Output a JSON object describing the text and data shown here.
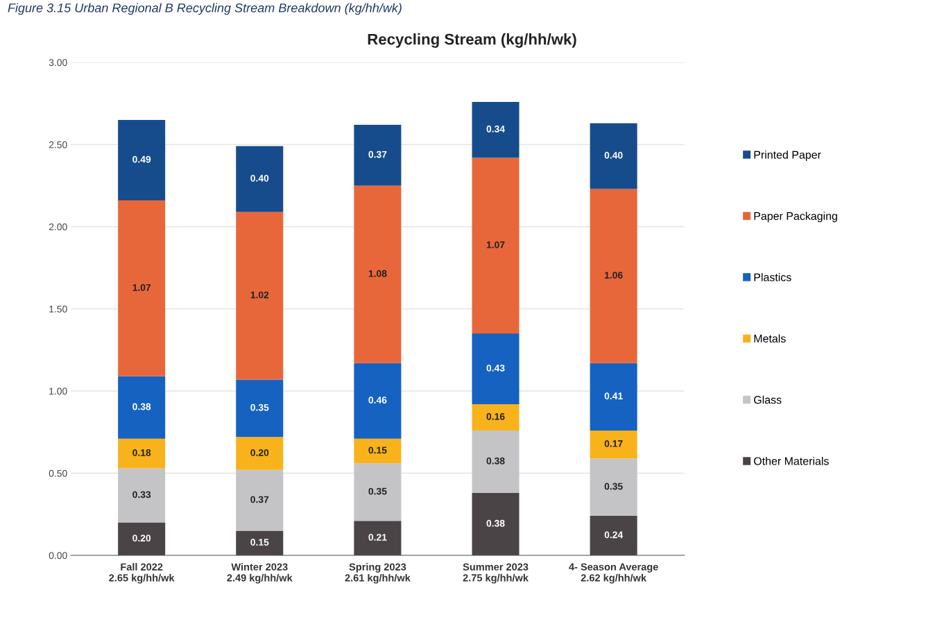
{
  "chart_data": {
    "type": "bar",
    "title": "Recycling Stream (kg/hh/wk)",
    "stacked": true,
    "grid": "y",
    "legend": "right",
    "annotations": [
      "Figure 3.15 Urban Regional B Recycling Stream Breakdown (kg/hh/wk)"
    ],
    "categories": [
      "Fall 2022\n2.65 kg/hh/wk",
      "Winter 2023\n2.49 kg/hh/wk",
      "Spring 2023\n2.61 kg/hh/wk",
      "Summer 2023\n2.75 kg/hh/wk",
      "4- Season Average\n2.62 kg/hh/wk"
    ],
    "ylim": [
      0,
      3.0
    ],
    "yticks": [
      {
        "value": 0,
        "label": "0.00"
      },
      {
        "value": 0.5,
        "label": "0.50"
      },
      {
        "value": 1.0,
        "label": "1.00"
      },
      {
        "value": 1.5,
        "label": "1.50"
      },
      {
        "value": 2.0,
        "label": "2.00"
      },
      {
        "value": 2.5,
        "label": "2.50"
      },
      {
        "value": 3.0,
        "label": "3.00"
      }
    ],
    "series": [
      {
        "name": "Other Materials",
        "color": "#4a4446",
        "values": [
          0.2,
          0.15,
          0.21,
          0.38,
          0.24
        ],
        "value_labels": [
          "0.20",
          "0.15",
          "0.21",
          "0.38",
          "0.24"
        ]
      },
      {
        "name": "Glass",
        "color": "#c4c4c6",
        "values": [
          0.33,
          0.37,
          0.35,
          0.38,
          0.35
        ],
        "value_labels": [
          "0.33",
          "0.37",
          "0.35",
          "0.38",
          "0.35"
        ]
      },
      {
        "name": "Metals",
        "color": "#f8b21c",
        "values": [
          0.18,
          0.2,
          0.15,
          0.16,
          0.17
        ],
        "value_labels": [
          "0.18",
          "0.20",
          "0.15",
          "0.16",
          "0.17"
        ]
      },
      {
        "name": "Plastics",
        "color": "#1662c0",
        "values": [
          0.38,
          0.35,
          0.46,
          0.43,
          0.41
        ],
        "value_labels": [
          "0.38",
          "0.35",
          "0.46",
          "0.43",
          "0.41"
        ]
      },
      {
        "name": "Paper Packaging",
        "color": "#e8673a",
        "values": [
          1.07,
          1.02,
          1.08,
          1.07,
          1.06
        ],
        "value_labels": [
          "1.07",
          "1.02",
          "1.08",
          "1.07",
          "1.06"
        ]
      },
      {
        "name": "Printed Paper",
        "color": "#174c8c",
        "values": [
          0.49,
          0.4,
          0.37,
          0.34,
          0.4
        ],
        "value_labels": [
          "0.49",
          "0.40",
          "0.37",
          "0.34",
          "0.40"
        ]
      }
    ]
  }
}
